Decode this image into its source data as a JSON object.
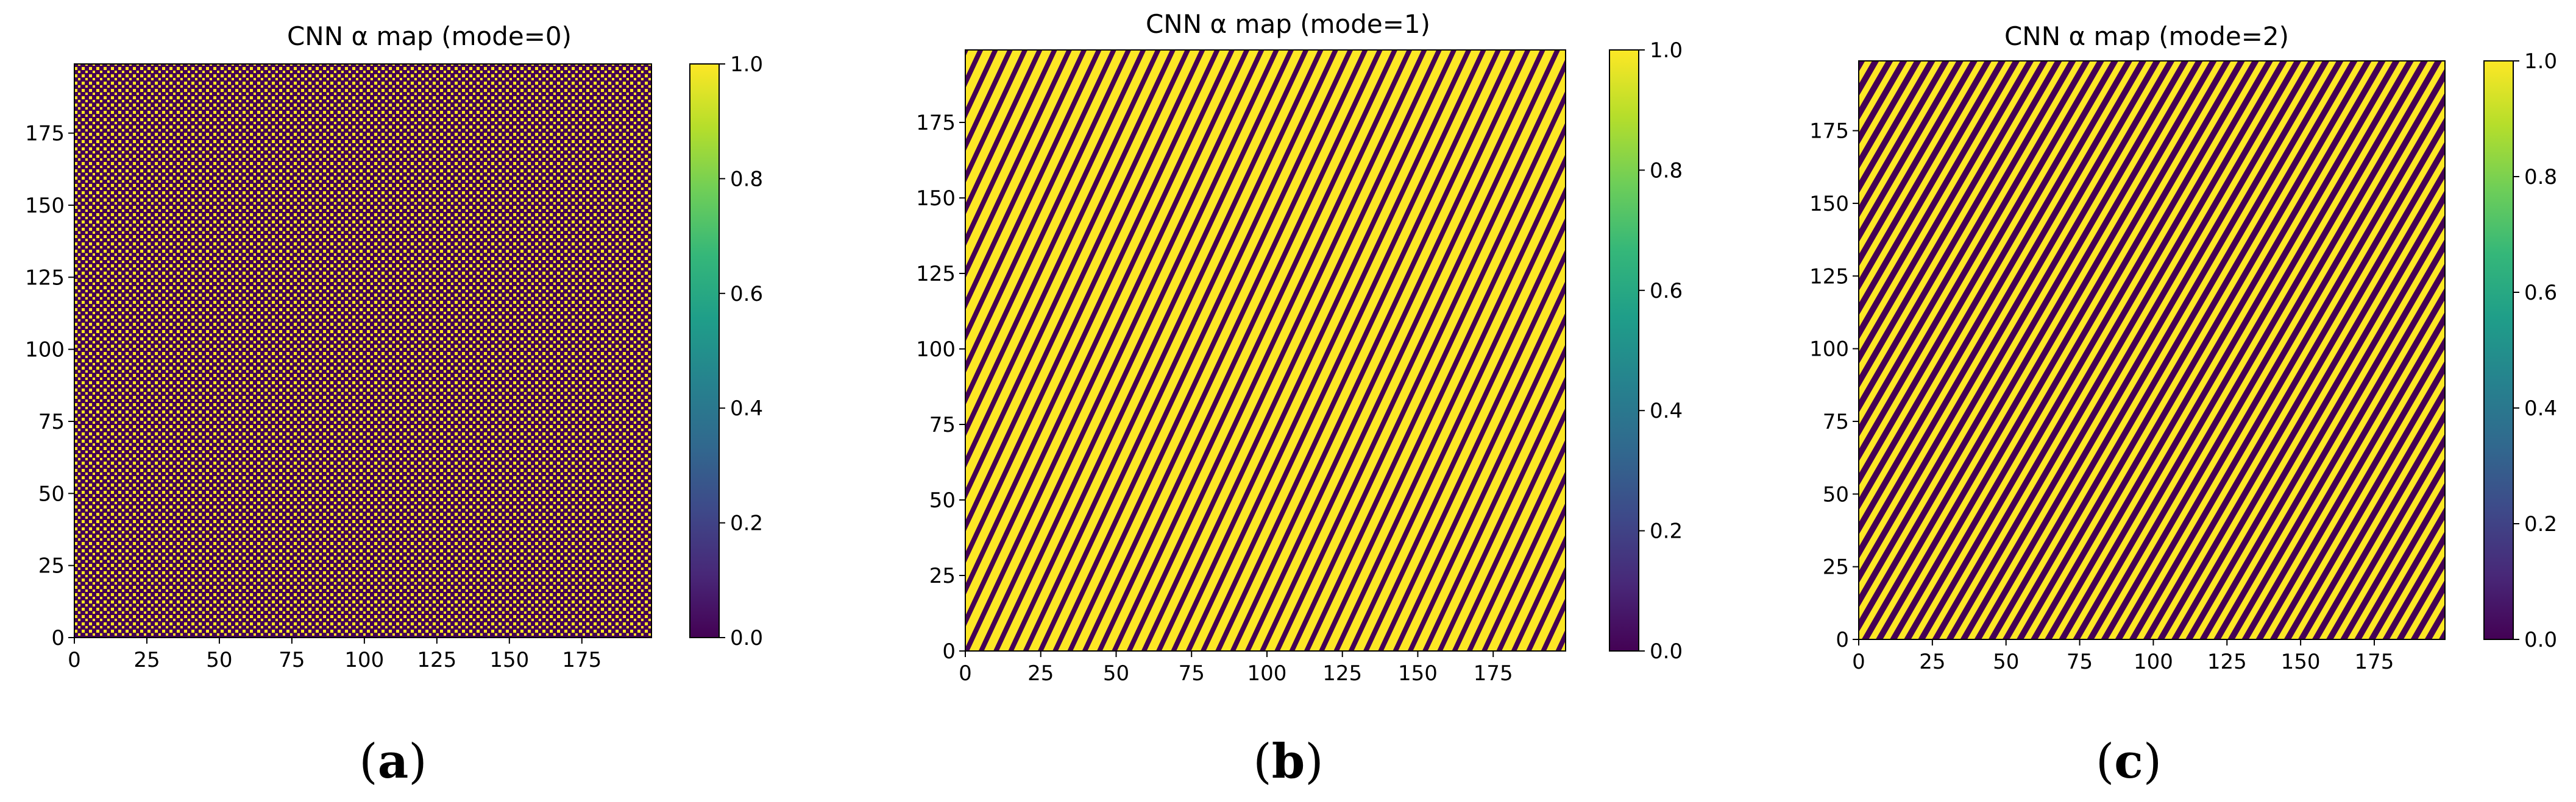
{
  "chart_data": [
    {
      "type": "heatmap",
      "title": "CNN α map (mode=0)",
      "panel_label": "a",
      "xlim": [
        0,
        199
      ],
      "ylim": [
        0,
        199
      ],
      "xticks": [
        0,
        25,
        50,
        75,
        100,
        125,
        150,
        175
      ],
      "yticks": [
        0,
        25,
        50,
        75,
        100,
        125,
        150,
        175
      ],
      "colorbar": {
        "range": [
          0.0,
          1.0
        ],
        "ticks": [
          "0.0",
          "0.2",
          "0.4",
          "0.6",
          "0.8",
          "1.0"
        ]
      },
      "colormap": "viridis",
      "pattern": {
        "kind": "dots",
        "fraction_high": 0.3
      }
    },
    {
      "type": "heatmap",
      "title": "CNN α map (mode=1)",
      "panel_label": "b",
      "xlim": [
        0,
        199
      ],
      "ylim": [
        0,
        199
      ],
      "xticks": [
        0,
        25,
        50,
        75,
        100,
        125,
        150,
        175
      ],
      "yticks": [
        0,
        25,
        50,
        75,
        100,
        125,
        150,
        175
      ],
      "colorbar": {
        "range": [
          0.0,
          1.0
        ],
        "ticks": [
          "0.0",
          "0.2",
          "0.4",
          "0.6",
          "0.8",
          "1.0"
        ]
      },
      "colormap": "viridis",
      "pattern": {
        "kind": "diagonal-stripes",
        "fraction_high": 0.65
      }
    },
    {
      "type": "heatmap",
      "title": "CNN α map (mode=2)",
      "panel_label": "c",
      "xlim": [
        0,
        199
      ],
      "ylim": [
        0,
        199
      ],
      "xticks": [
        0,
        25,
        50,
        75,
        100,
        125,
        150,
        175
      ],
      "yticks": [
        0,
        25,
        50,
        75,
        100,
        125,
        150,
        175
      ],
      "colorbar": {
        "range": [
          0.0,
          1.0
        ],
        "ticks": [
          "0.0",
          "0.2",
          "0.4",
          "0.6",
          "0.8",
          "1.0"
        ]
      },
      "colormap": "viridis",
      "pattern": {
        "kind": "diagonal-stripes",
        "fraction_high": 0.5
      }
    }
  ],
  "colors": {
    "low": "#440154",
    "high": "#fde725",
    "viridis": [
      "#440154",
      "#482878",
      "#3e4989",
      "#31688e",
      "#26828e",
      "#1f9e89",
      "#35b779",
      "#6ece58",
      "#b5de2b",
      "#fde725"
    ]
  }
}
